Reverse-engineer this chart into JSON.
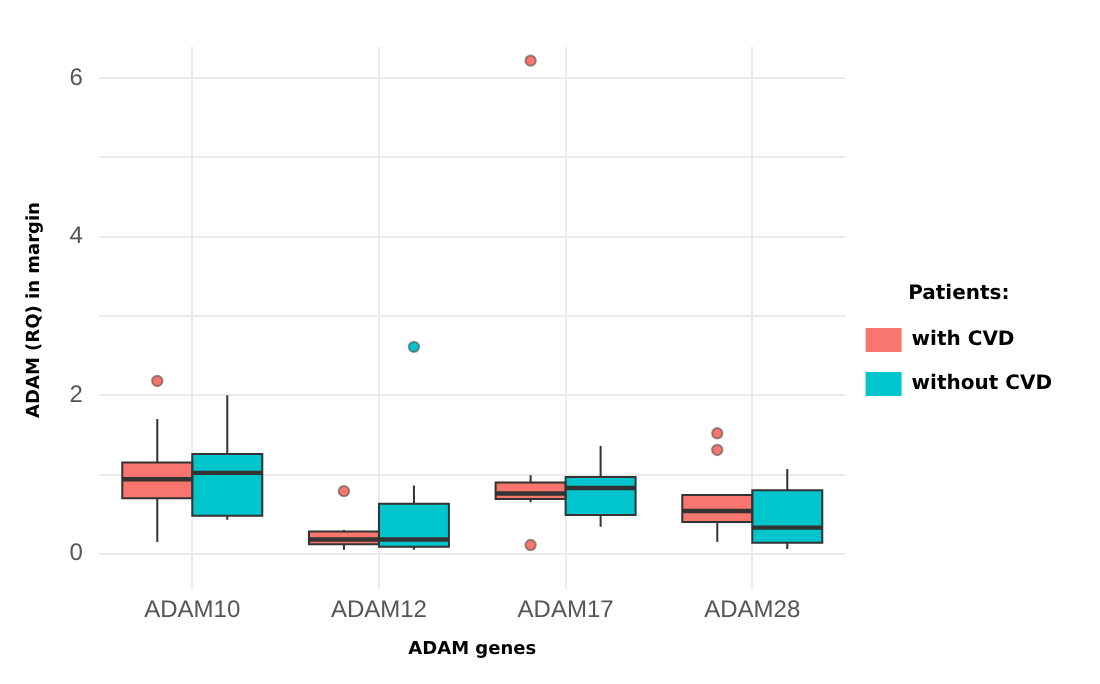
{
  "chart_data": {
    "type": "box",
    "xlabel": "ADAM genes",
    "ylabel": "ADAM (RQ) in margin",
    "legend_title": "Patients:",
    "categories": [
      "ADAM10",
      "ADAM12",
      "ADAM17",
      "ADAM28"
    ],
    "series": [
      {
        "name": "with CVD",
        "color": "#f8766d",
        "boxes": [
          {
            "low": 0.15,
            "q1": 0.7,
            "median": 0.94,
            "q3": 1.15,
            "high": 1.7,
            "outliers": [
              2.18
            ]
          },
          {
            "low": 0.05,
            "q1": 0.12,
            "median": 0.18,
            "q3": 0.28,
            "high": 0.3,
            "outliers": [
              0.79
            ]
          },
          {
            "low": 0.65,
            "q1": 0.69,
            "median": 0.76,
            "q3": 0.9,
            "high": 0.99,
            "outliers": [
              6.22,
              0.11
            ]
          },
          {
            "low": 0.15,
            "q1": 0.4,
            "median": 0.54,
            "q3": 0.74,
            "high": 0.74,
            "outliers": [
              1.52,
              1.31
            ]
          }
        ]
      },
      {
        "name": "without CVD",
        "color": "#00c5cd",
        "boxes": [
          {
            "low": 0.43,
            "q1": 0.48,
            "median": 1.02,
            "q3": 1.26,
            "high": 2.0
          },
          {
            "low": 0.05,
            "q1": 0.09,
            "median": 0.18,
            "q3": 0.63,
            "high": 0.86,
            "outliers": [
              2.61
            ]
          },
          {
            "low": 0.34,
            "q1": 0.49,
            "median": 0.83,
            "q3": 0.97,
            "high": 1.36
          },
          {
            "low": 0.06,
            "q1": 0.14,
            "median": 0.33,
            "q3": 0.8,
            "high": 1.07
          }
        ]
      }
    ],
    "ylim": [
      -0.25,
      6.4
    ],
    "yticks": [
      0,
      {
        "value": 1,
        "label": null
      },
      2,
      {
        "value": 3,
        "label": null
      },
      4,
      {
        "value": 5,
        "label": null
      },
      6
    ],
    "grid": true,
    "legend": "right"
  }
}
